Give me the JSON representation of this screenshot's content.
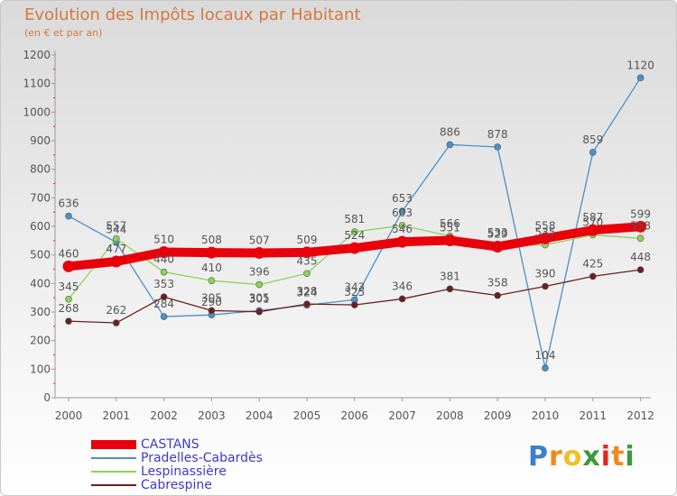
{
  "header": {
    "title": "Evolution des Impôts locaux par Habitant",
    "subtitle": "(en € et par an)"
  },
  "chart_data": {
    "type": "line",
    "title": "Evolution des Impôts locaux par Habitant",
    "subtitle": "(en € et par an)",
    "xlabel": "",
    "ylabel": "",
    "x": [
      "2000",
      "2001",
      "2002",
      "2003",
      "2004",
      "2005",
      "2006",
      "2007",
      "2008",
      "2009",
      "2010",
      "2011",
      "2012"
    ],
    "ylim": [
      0,
      1200
    ],
    "yticks": [
      0,
      100,
      200,
      300,
      400,
      500,
      600,
      700,
      800,
      900,
      1000,
      1100,
      1200
    ],
    "grid": false,
    "legend_position": "bottom-left",
    "series": [
      {
        "name": "CASTANS",
        "color": "#e8000b",
        "values": [
          460,
          477,
          510,
          508,
          507,
          509,
          524,
          546,
          551,
          529,
          558,
          587,
          599
        ]
      },
      {
        "name": "Pradelles-Cabardès",
        "color": "#4a90c8",
        "values": [
          636,
          544,
          284,
          290,
          305,
          324,
          343,
          653,
          886,
          878,
          104,
          859,
          1120
        ]
      },
      {
        "name": "Lespinassière",
        "color": "#8ad45a",
        "values": [
          345,
          557,
          440,
          410,
          396,
          435,
          581,
          603,
          566,
          533,
          535,
          570,
          558
        ]
      },
      {
        "name": "Cabrespine",
        "color": "#6b1f1f",
        "values": [
          268,
          262,
          353,
          305,
          301,
          328,
          325,
          346,
          381,
          358,
          390,
          425,
          448
        ]
      }
    ]
  },
  "logo": {
    "letters": [
      "P",
      "r",
      "o",
      "x",
      "i",
      "t",
      "i"
    ],
    "colors": [
      "#3b7fd1",
      "#f08a1e",
      "#f0c020",
      "#3b9a3b",
      "#e0281c",
      "#f08a1e",
      "#3b9a3b"
    ]
  }
}
